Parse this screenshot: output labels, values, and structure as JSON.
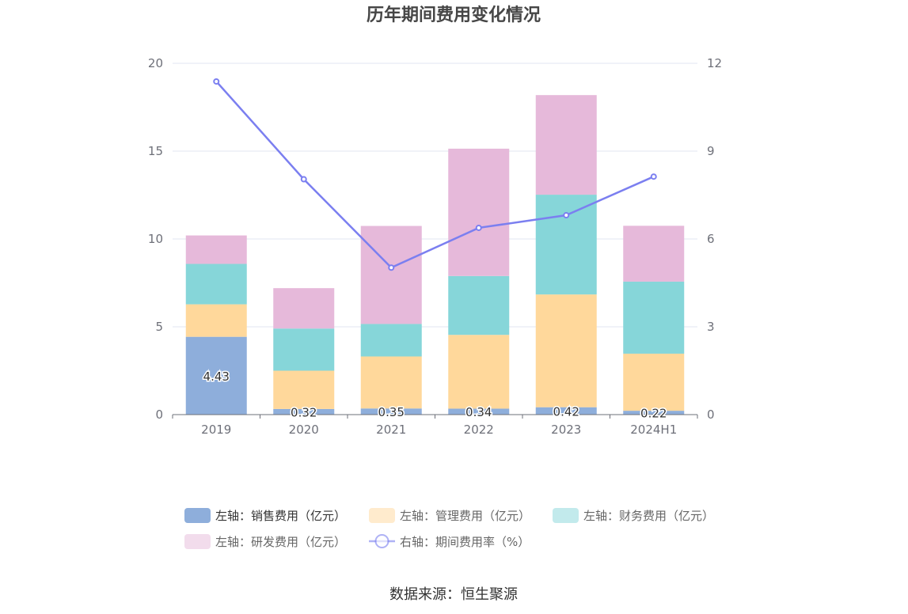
{
  "chart_data": {
    "type": "bar",
    "title": "历年期间费用变化情况",
    "categories": [
      "2019",
      "2020",
      "2021",
      "2022",
      "2023",
      "2024H1"
    ],
    "stacked": true,
    "ylim_left": [
      0,
      20
    ],
    "yticks_left": [
      "0",
      "5",
      "10",
      "15",
      "20"
    ],
    "ylim_right": [
      0,
      12
    ],
    "yticks_right": [
      "0",
      "3",
      "6",
      "9",
      "12"
    ],
    "grid": true,
    "legend_position": "bottom",
    "series": [
      {
        "name": "左轴：销售费用（亿元）",
        "axis": "left",
        "type": "bar",
        "color": "#8eaedb",
        "values": [
          4.43,
          0.32,
          0.35,
          0.34,
          0.42,
          0.22
        ],
        "labels": [
          "4.43",
          "0.32",
          "0.35",
          "0.34",
          "0.42",
          "0.22"
        ]
      },
      {
        "name": "左轴：管理费用（亿元）",
        "axis": "left",
        "type": "bar",
        "color": "#ffd89b",
        "values": [
          1.85,
          2.18,
          2.96,
          4.2,
          6.42,
          3.25
        ]
      },
      {
        "name": "左轴：财务费用（亿元）",
        "axis": "left",
        "type": "bar",
        "color": "#86d6d9",
        "values": [
          2.3,
          2.4,
          1.85,
          3.35,
          5.68,
          4.1
        ]
      },
      {
        "name": "左轴：研发费用（亿元）",
        "axis": "left",
        "type": "bar",
        "color": "#e6b9da",
        "values": [
          1.62,
          2.3,
          5.58,
          7.25,
          5.67,
          3.18
        ]
      },
      {
        "name": "右轴：期间费用率（%）",
        "axis": "right",
        "type": "line",
        "color": "#7b7ff0",
        "values": [
          11.38,
          8.04,
          5.02,
          6.38,
          6.81,
          8.13
        ]
      }
    ]
  },
  "source": "数据来源：恒生聚源"
}
